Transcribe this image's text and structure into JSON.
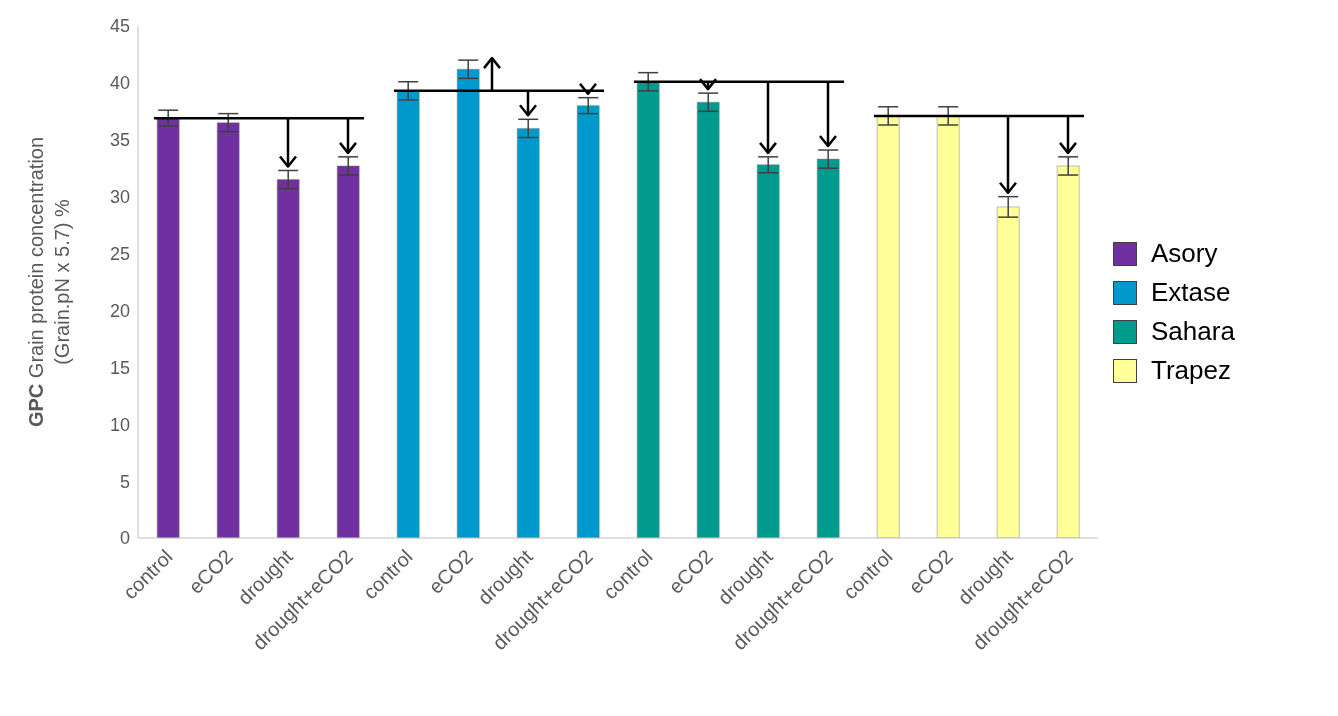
{
  "chart_data": {
    "type": "bar",
    "ylabel": "GPC Grain protein concentration (Grain.pN x 5.7) %",
    "categories": [
      "control",
      "eCO2",
      "drought",
      "drought+eCO2",
      "control",
      "eCO2",
      "drought",
      "drought+eCO2",
      "control",
      "eCO2",
      "drought",
      "drought+eCO2",
      "control",
      "eCO2",
      "drought",
      "drought+eCO2"
    ],
    "series": [
      {
        "name": "Asory",
        "color": "#7030a0",
        "values": [
          36.9,
          36.5,
          31.5,
          32.7,
          null,
          null,
          null,
          null,
          null,
          null,
          null,
          null,
          null,
          null,
          null,
          null
        ],
        "errors": [
          0.7,
          0.8,
          0.8,
          0.8,
          null,
          null,
          null,
          null,
          null,
          null,
          null,
          null,
          null,
          null,
          null,
          null
        ]
      },
      {
        "name": "Extase",
        "color": "#0099cc",
        "values": [
          null,
          null,
          null,
          null,
          39.3,
          41.2,
          36.0,
          38.0,
          null,
          null,
          null,
          null,
          null,
          null,
          null,
          null
        ],
        "errors": [
          null,
          null,
          null,
          null,
          0.8,
          0.8,
          0.8,
          0.7,
          null,
          null,
          null,
          null,
          null,
          null,
          null,
          null
        ]
      },
      {
        "name": "Sahara",
        "color": "#009a8f",
        "values": [
          null,
          null,
          null,
          null,
          null,
          null,
          null,
          null,
          40.1,
          38.3,
          32.8,
          33.3,
          null,
          null,
          null,
          null
        ],
        "errors": [
          null,
          null,
          null,
          null,
          null,
          null,
          null,
          null,
          0.8,
          0.8,
          0.7,
          0.8,
          null,
          null,
          null,
          null
        ]
      },
      {
        "name": "Trapez",
        "color": "#ffff99",
        "values": [
          null,
          null,
          null,
          null,
          null,
          null,
          null,
          null,
          null,
          null,
          null,
          null,
          37.1,
          37.1,
          29.1,
          32.7
        ],
        "errors": [
          null,
          null,
          null,
          null,
          null,
          null,
          null,
          null,
          null,
          null,
          null,
          null,
          0.8,
          0.8,
          0.9,
          0.8
        ]
      }
    ],
    "ylim": [
      0,
      45
    ],
    "yticks": [
      0,
      5,
      10,
      15,
      20,
      25,
      30,
      35,
      40,
      45
    ],
    "grid": false,
    "legend": "right"
  }
}
